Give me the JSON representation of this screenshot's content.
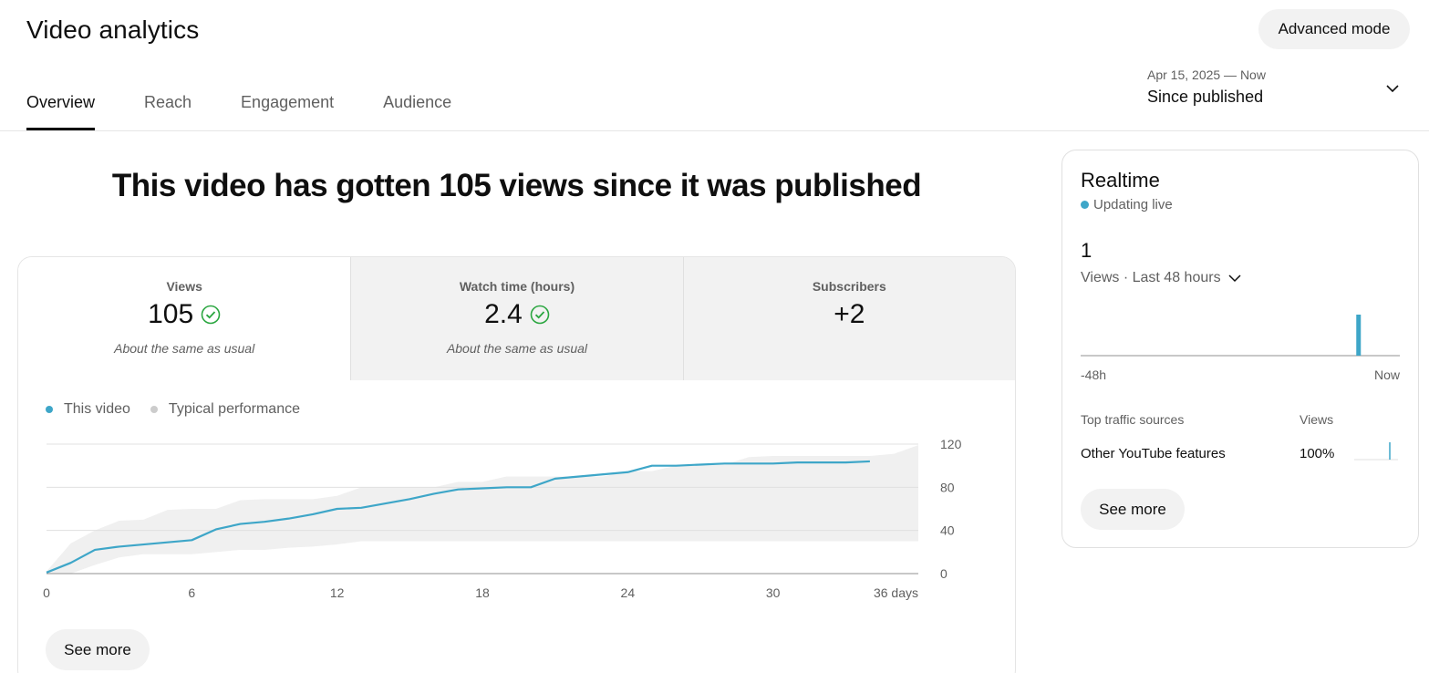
{
  "header": {
    "title": "Video analytics",
    "advanced_mode_label": "Advanced mode"
  },
  "tabs": [
    {
      "label": "Overview",
      "active": true
    },
    {
      "label": "Reach",
      "active": false
    },
    {
      "label": "Engagement",
      "active": false
    },
    {
      "label": "Audience",
      "active": false
    }
  ],
  "date_range": {
    "range": "Apr 15, 2025 — Now",
    "label": "Since published",
    "icon": "chevron-down-icon"
  },
  "headline": "This video has gotten 105 views since it was published",
  "metrics": [
    {
      "label": "Views",
      "value": "105",
      "note": "About the same as usual",
      "icon": "check-circle-icon",
      "selected": true
    },
    {
      "label": "Watch time (hours)",
      "value": "2.4",
      "note": "About the same as usual",
      "icon": "check-circle-icon",
      "selected": false
    },
    {
      "label": "Subscribers",
      "value": "+2",
      "note": "",
      "selected": false
    }
  ],
  "legend": {
    "this_video": "This video",
    "typical": "Typical performance"
  },
  "colors": {
    "accent": "#3ea6c8",
    "typical_band": "#f0f0f0",
    "typical_dot": "#cccccc",
    "grid": "#e0e0e0",
    "check": "#2ba640"
  },
  "chart_data": {
    "type": "line",
    "x_unit": "days",
    "x_ticks": [
      "0",
      "6",
      "12",
      "18",
      "24",
      "30",
      "36 days"
    ],
    "y_ticks": [
      "0",
      "40",
      "80",
      "120"
    ],
    "xlim": [
      0,
      36
    ],
    "ylim": [
      0,
      120
    ],
    "series": [
      {
        "name": "This video",
        "x": [
          0,
          1,
          2,
          3,
          4,
          5,
          6,
          7,
          8,
          9,
          10,
          11,
          12,
          13,
          14,
          15,
          16,
          17,
          18,
          19,
          20,
          21,
          22,
          23,
          24,
          25,
          26,
          27,
          28,
          29,
          30,
          31,
          32,
          33,
          34
        ],
        "values": [
          1,
          10,
          22,
          25,
          27,
          29,
          31,
          41,
          46,
          48,
          51,
          55,
          60,
          61,
          65,
          69,
          74,
          78,
          79,
          80,
          80,
          88,
          90,
          92,
          94,
          100,
          100,
          101,
          102,
          102,
          102,
          103,
          103,
          103,
          104
        ]
      }
    ],
    "typical_band": {
      "x": [
        0,
        1,
        2,
        3,
        4,
        5,
        6,
        7,
        8,
        9,
        10,
        11,
        12,
        13,
        14,
        15,
        16,
        17,
        18,
        19,
        20,
        21,
        22,
        23,
        24,
        25,
        26,
        27,
        28,
        29,
        30,
        31,
        32,
        33,
        34,
        35,
        36
      ],
      "upper": [
        2,
        28,
        40,
        49,
        50,
        59,
        60,
        60,
        68,
        69,
        69,
        69,
        72,
        80,
        80,
        80,
        80,
        85,
        85,
        90,
        90,
        90,
        90,
        90,
        95,
        95,
        100,
        100,
        101,
        108,
        109,
        109,
        109,
        109,
        109,
        111,
        119
      ],
      "lower": [
        0,
        0,
        8,
        15,
        18,
        18,
        18,
        20,
        22,
        22,
        24,
        25,
        27,
        30,
        30,
        30,
        30,
        30,
        30,
        30,
        30,
        30,
        30,
        30,
        30,
        30,
        30,
        30,
        30,
        30,
        30,
        30,
        30,
        30,
        30,
        30,
        30
      ]
    }
  },
  "realtime": {
    "title": "Realtime",
    "status": "Updating live",
    "count": "1",
    "metric_label": "Views · Last 48 hours",
    "axis_start": "-48h",
    "axis_end": "Now",
    "bar_position_hours_ago": 6,
    "bar_value": 1,
    "traffic_header": "Top traffic sources",
    "traffic_header_value": "Views",
    "traffic_sources": [
      {
        "label": "Other YouTube features",
        "value": "100%"
      }
    ],
    "see_more_label": "See more"
  },
  "card_see_more_label": "See more"
}
